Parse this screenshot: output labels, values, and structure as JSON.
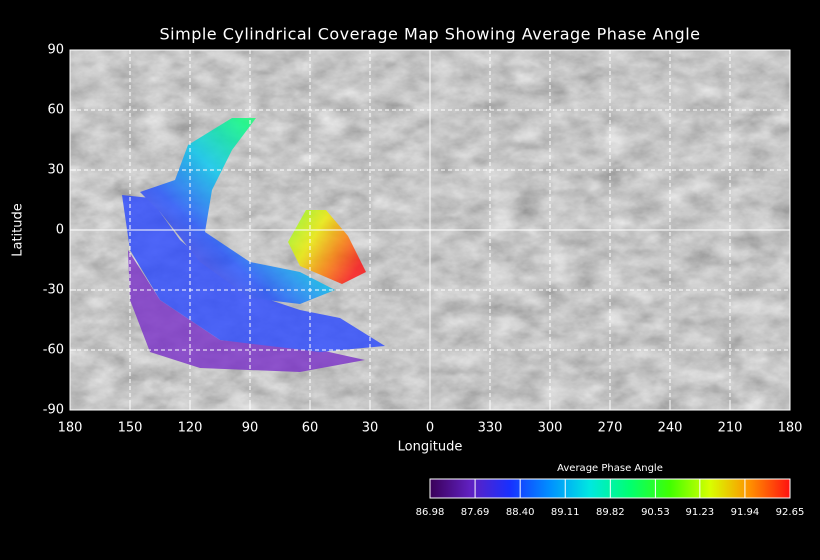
{
  "chart_data": {
    "type": "map",
    "title": "Simple Cylindrical Coverage Map Showing Average Phase Angle",
    "x_label": "Longitude",
    "y_label": "Latitude",
    "xlim": [
      180,
      -180
    ],
    "ylim": [
      -90,
      90
    ],
    "xticks": [
      180,
      150,
      120,
      90,
      60,
      30,
      0,
      {
        "value": -30,
        "label": "330"
      },
      {
        "value": -60,
        "label": "300"
      },
      {
        "value": -90,
        "label": "270"
      },
      {
        "value": -120,
        "label": "240"
      },
      {
        "value": -150,
        "label": "210"
      },
      {
        "value": -180,
        "label": "180"
      }
    ],
    "yticks": [
      90,
      60,
      30,
      0,
      -30,
      -60,
      -90
    ],
    "grid": true,
    "colorbar": {
      "title": "Average Phase Angle",
      "lim": [
        86.98,
        92.65
      ],
      "ticks": [
        86.98,
        87.69,
        {
          "value": 88.4,
          "label": "88.40"
        },
        89.11,
        89.82,
        90.53,
        91.23,
        91.94,
        92.65
      ],
      "colors": [
        "#3a0058",
        "#6020c0",
        "#1830ff",
        "#0090ff",
        "#00e8e0",
        "#00ff70",
        "#40ff00",
        "#d8ff00",
        "#ff9000",
        "#ff1010"
      ]
    }
  }
}
